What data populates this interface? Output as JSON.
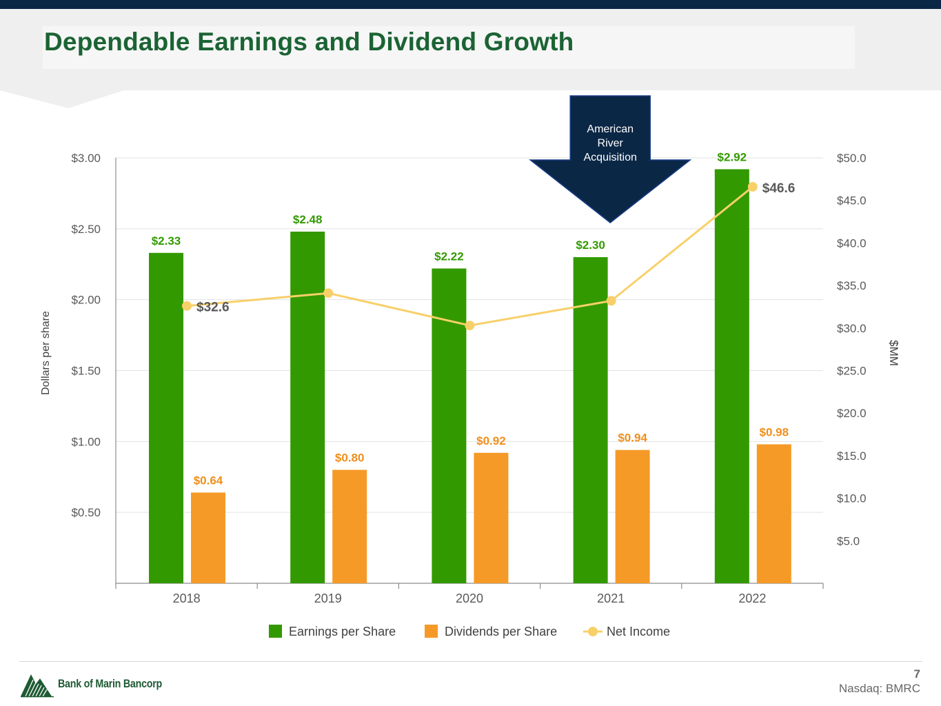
{
  "header": {
    "title": "Dependable Earnings and Dividend Growth"
  },
  "chart_data": {
    "type": "bar",
    "categories": [
      "2018",
      "2019",
      "2020",
      "2021",
      "2022"
    ],
    "series": [
      {
        "name": "Earnings per Share",
        "kind": "bar",
        "axis": "left",
        "color": "#339900",
        "values": [
          2.33,
          2.48,
          2.22,
          2.3,
          2.92
        ],
        "labels": [
          "$2.33",
          "$2.48",
          "$2.22",
          "$2.30",
          "$2.92"
        ]
      },
      {
        "name": "Dividends per Share",
        "kind": "bar",
        "axis": "left",
        "color": "#f59a27",
        "values": [
          0.64,
          0.8,
          0.92,
          0.94,
          0.98
        ],
        "labels": [
          "$0.64",
          "$0.80",
          "$0.92",
          "$0.94",
          "$0.98"
        ]
      },
      {
        "name": "Net Income",
        "kind": "line",
        "axis": "right",
        "color": "#f8d06a",
        "values": [
          32.6,
          34.1,
          30.3,
          33.2,
          46.6
        ],
        "labels": [
          "$32.6",
          "",
          "",
          "",
          "$46.6"
        ]
      }
    ],
    "y_left": {
      "label": "Dollars per share",
      "min": 0,
      "max": 3.0,
      "ticks": [
        "$0.50",
        "$1.00",
        "$1.50",
        "$2.00",
        "$2.50",
        "$3.00"
      ]
    },
    "y_right": {
      "label": "$MM",
      "min": 0,
      "max": 50.0,
      "ticks": [
        "$5.0",
        "$10.0",
        "$15.0",
        "$20.0",
        "$25.0",
        "$30.0",
        "$35.0",
        "$40.0",
        "$45.0",
        "$50.0"
      ]
    },
    "grid": true,
    "legend": "bottom",
    "annotation": {
      "lines": [
        "American",
        "River",
        "Acquisition"
      ],
      "category": "2021",
      "fill": "#0b2746"
    }
  },
  "footer": {
    "company": "Bank of Marin Bancorp",
    "page_number": "7",
    "ticker": "Nasdaq: BMRC"
  },
  "colors": {
    "title_green": "#1b6334",
    "top_bar_navy": "#0b2746",
    "eps_label_green": "#339900",
    "dps_label_orange": "#f08f1e"
  }
}
